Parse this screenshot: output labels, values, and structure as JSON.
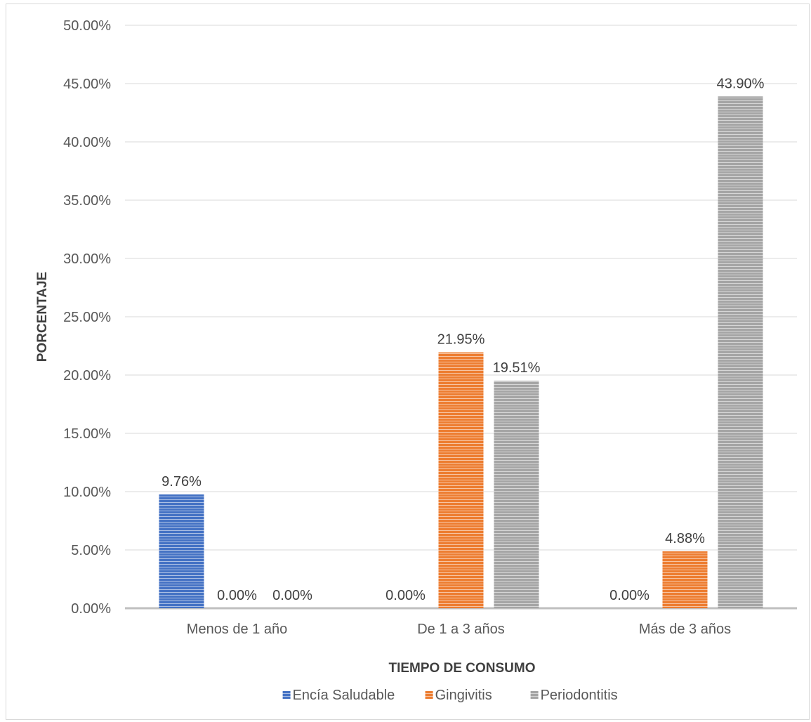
{
  "chart_data": {
    "type": "bar",
    "title": "",
    "xlabel": "TIEMPO DE CONSUMO",
    "ylabel": "PORCENTAJE",
    "ylim": [
      0,
      50
    ],
    "yticks": [
      "0.00%",
      "5.00%",
      "10.00%",
      "15.00%",
      "20.00%",
      "25.00%",
      "30.00%",
      "35.00%",
      "40.00%",
      "45.00%",
      "50.00%"
    ],
    "categories": [
      "Menos de 1 año",
      "De 1 a 3 años",
      "Más de 3 años"
    ],
    "series": [
      {
        "name": "Encía Saludable",
        "color": "#4472c4",
        "values": [
          9.76,
          0,
          0
        ],
        "labels": [
          "9.76%",
          "0.00%",
          "0.00%"
        ]
      },
      {
        "name": "Gingivitis",
        "color": "#ed7d31",
        "values": [
          0,
          21.95,
          4.88
        ],
        "labels": [
          "0.00%",
          "21.95%",
          "4.88%"
        ]
      },
      {
        "name": "Periodontitis",
        "color": "#a5a5a5",
        "values": [
          0,
          19.51,
          43.9
        ],
        "labels": [
          "0.00%",
          "19.51%",
          "43.90%"
        ]
      }
    ],
    "grid": true,
    "legend": "bottom"
  }
}
